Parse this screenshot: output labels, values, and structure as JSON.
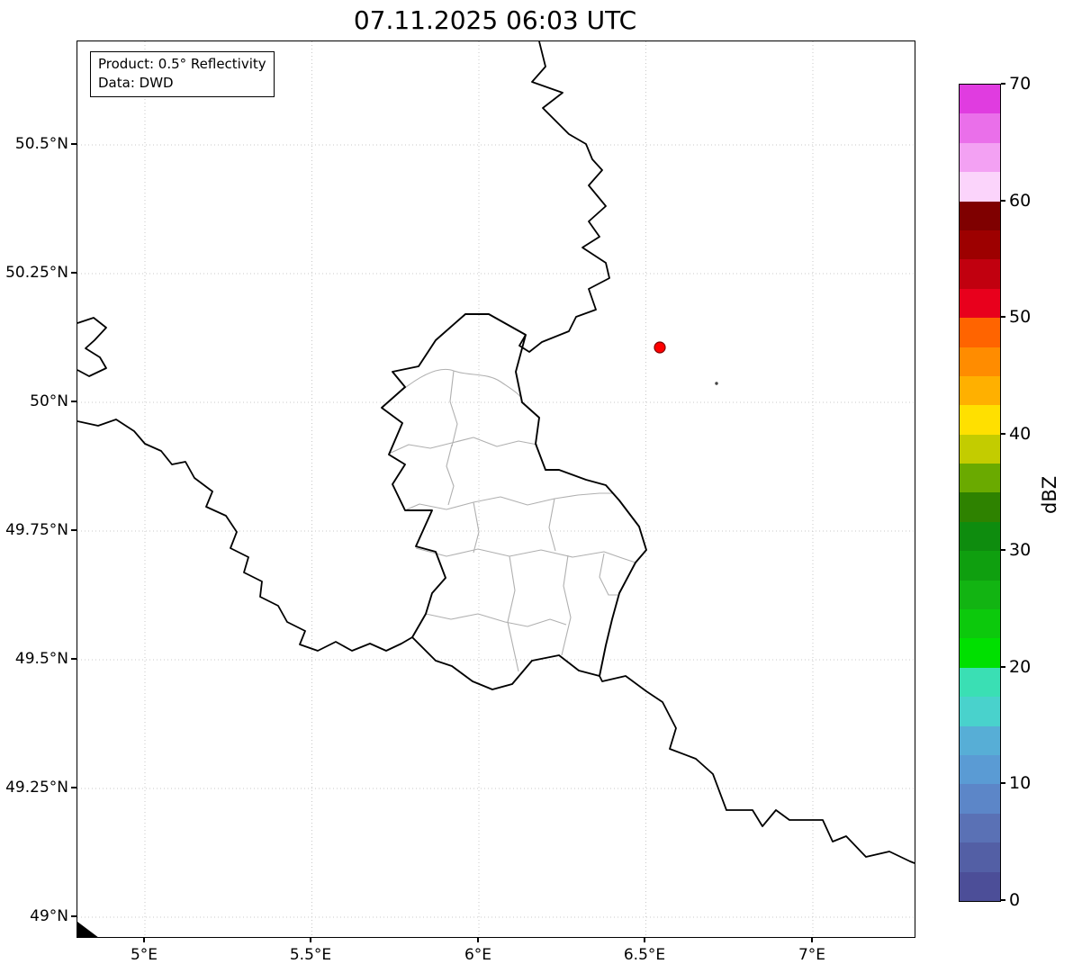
{
  "title": "07.11.2025 06:03 UTC",
  "annotation": {
    "line1": "Product: 0.5° Reflectivity",
    "line2": "Data: DWD"
  },
  "axes": {
    "x_ticks": [
      "5°E",
      "5.5°E",
      "6°E",
      "6.5°E",
      "7°E"
    ],
    "y_ticks": [
      "50.5°N",
      "50.25°N",
      "50°N",
      "49.75°N",
      "49.5°N",
      "49.25°N",
      "49°N"
    ],
    "lon_range_deg_e": [
      4.8,
      7.3
    ],
    "lat_range_deg_n": [
      48.97,
      50.7
    ]
  },
  "colorbar": {
    "label": "dBZ",
    "ticks": [
      "70",
      "60",
      "50",
      "40",
      "30",
      "20",
      "10",
      "0"
    ],
    "min": 0,
    "max": 70,
    "step_dbz": 2.5,
    "colors_top_to_bottom": [
      "#e03ce0",
      "#ea6fea",
      "#f3a1f3",
      "#fbd4fb",
      "#7f0000",
      "#9d0000",
      "#c1000f",
      "#e8001c",
      "#ff6400",
      "#ff8c00",
      "#ffb000",
      "#ffe000",
      "#c3cc00",
      "#6aaa00",
      "#2e8200",
      "#0e8c0e",
      "#0f9f0f",
      "#12b412",
      "#0cc90c",
      "#00e000",
      "#3adfb4",
      "#49d2cc",
      "#57aed6",
      "#5a9bd4",
      "#5c86c8",
      "#5a71b5",
      "#535fa5",
      "#4c4e98"
    ]
  },
  "map": {
    "country_border_color": "#000000",
    "admin_border_color": "#b0b0b0",
    "grid_color": "#c8c8c8",
    "radar_marker": {
      "color": "#ff0000",
      "edge_color": "#7f0000",
      "lon_deg_e": 6.54,
      "lat_deg_n": 50.1
    },
    "echo_speck_color": "#444444"
  }
}
